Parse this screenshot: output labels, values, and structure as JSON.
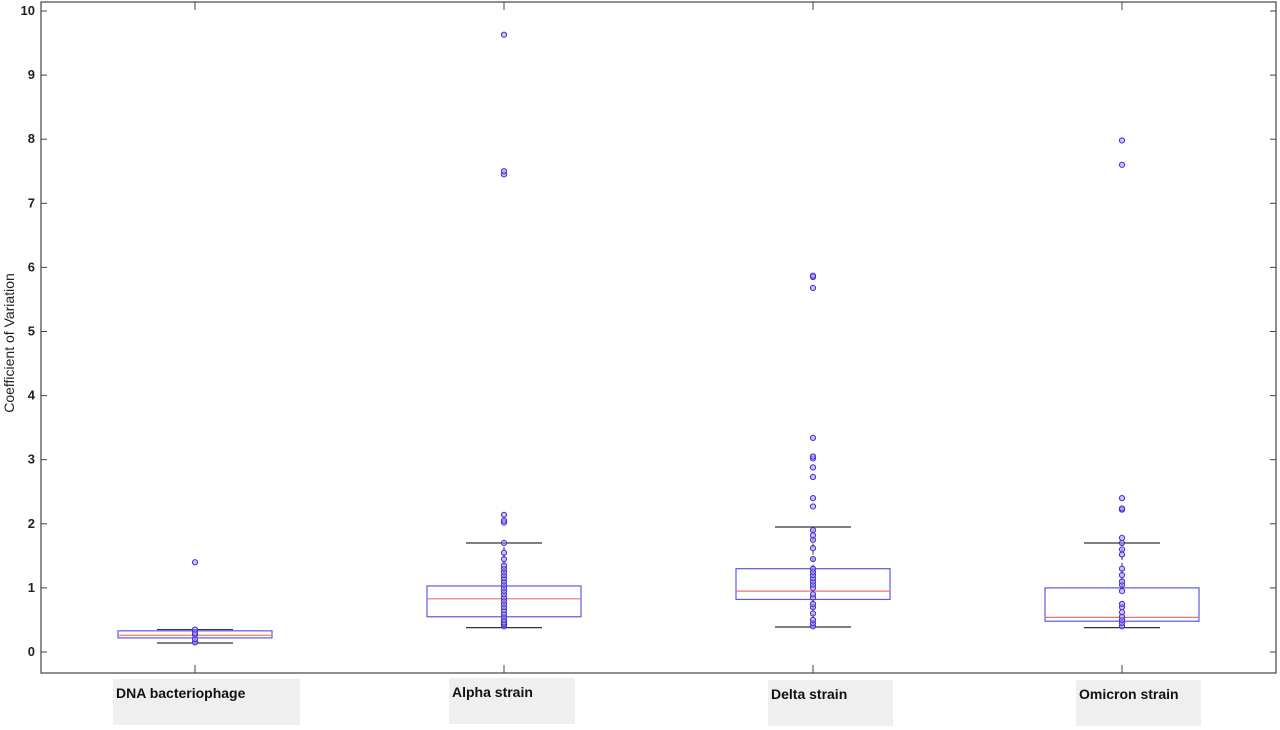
{
  "chart_data": {
    "type": "box",
    "title": "",
    "xlabel": "",
    "ylabel": "Coefficient of Variation",
    "ylim": [
      -0.3,
      10.1
    ],
    "yticks": [
      0,
      1,
      2,
      3,
      4,
      5,
      6,
      7,
      8,
      9,
      10
    ],
    "grid": false,
    "colors": {
      "box": "#5a5ae6",
      "median": "#f07070",
      "whisker": "#333333",
      "outlier_edge": "#3333dd",
      "outlier_fill": "#c88cd8"
    },
    "categories": [
      "DNA bacteriophage",
      "Alpha strain",
      "Delta strain",
      "Omicron strain"
    ],
    "boxes": [
      {
        "category": "DNA bacteriophage",
        "whisker_low": 0.14,
        "q1": 0.22,
        "median": 0.26,
        "q3": 0.33,
        "whisker_high": 0.35,
        "outliers": [
          0.15,
          0.2,
          0.27,
          0.3,
          0.35,
          1.4
        ]
      },
      {
        "category": "Alpha strain",
        "whisker_low": 0.38,
        "q1": 0.55,
        "median": 0.83,
        "q3": 1.03,
        "whisker_high": 1.7,
        "outliers": [
          0.4,
          0.43,
          0.46,
          0.5,
          0.55,
          0.6,
          0.65,
          0.7,
          0.75,
          0.8,
          0.85,
          0.9,
          0.95,
          1.0,
          1.05,
          1.1,
          1.15,
          1.2,
          1.25,
          1.3,
          1.35,
          1.45,
          1.55,
          1.7,
          2.02,
          2.05,
          2.14,
          7.45,
          7.5,
          9.63
        ]
      },
      {
        "category": "Delta strain",
        "whisker_low": 0.39,
        "q1": 0.82,
        "median": 0.95,
        "q3": 1.3,
        "whisker_high": 1.95,
        "outliers": [
          0.4,
          0.45,
          0.5,
          0.6,
          0.7,
          0.75,
          0.85,
          0.9,
          1.0,
          1.05,
          1.1,
          1.15,
          1.2,
          1.25,
          1.3,
          1.45,
          1.62,
          1.75,
          1.82,
          1.9,
          2.27,
          2.4,
          2.73,
          2.88,
          3.02,
          3.05,
          3.34,
          5.68,
          5.85,
          5.87
        ]
      },
      {
        "category": "Omicron strain",
        "whisker_low": 0.38,
        "q1": 0.48,
        "median": 0.54,
        "q3": 1.0,
        "whisker_high": 1.7,
        "outliers": [
          0.4,
          0.45,
          0.5,
          0.55,
          0.62,
          0.7,
          0.75,
          0.95,
          1.05,
          1.1,
          1.2,
          1.3,
          1.52,
          1.6,
          1.7,
          1.78,
          2.22,
          2.24,
          2.4,
          7.6,
          7.98
        ]
      }
    ]
  }
}
